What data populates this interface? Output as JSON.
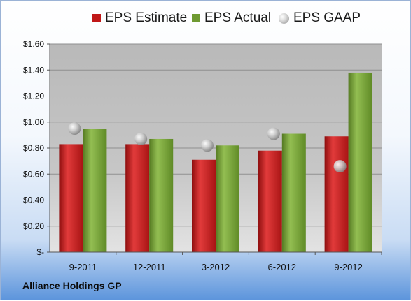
{
  "chart_data": {
    "type": "bar",
    "categories": [
      "9-2011",
      "12-2011",
      "3-2012",
      "6-2012",
      "9-2012"
    ],
    "series": [
      {
        "name": "EPS Estimate",
        "type": "bar",
        "color": "#c01818",
        "values": [
          0.83,
          0.83,
          0.71,
          0.78,
          0.89
        ]
      },
      {
        "name": "EPS Actual",
        "type": "bar",
        "color": "#6f9a32",
        "values": [
          0.95,
          0.87,
          0.82,
          0.91,
          1.38
        ]
      },
      {
        "name": "EPS GAAP",
        "type": "scatter",
        "color": "#bfbfbf",
        "values": [
          0.95,
          0.87,
          0.82,
          0.91,
          0.66
        ]
      }
    ],
    "y_ticks": [
      0,
      0.2,
      0.4,
      0.6,
      0.8,
      1.0,
      1.2,
      1.4,
      1.6
    ],
    "y_tick_labels": [
      "$-",
      "$0.20",
      "$0.40",
      "$0.60",
      "$0.80",
      "$1.00",
      "$1.20",
      "$1.40",
      "$1.60"
    ],
    "ylim": [
      0,
      1.6
    ],
    "grid": true,
    "legend_position": "top"
  },
  "company": "Alliance Holdings GP"
}
